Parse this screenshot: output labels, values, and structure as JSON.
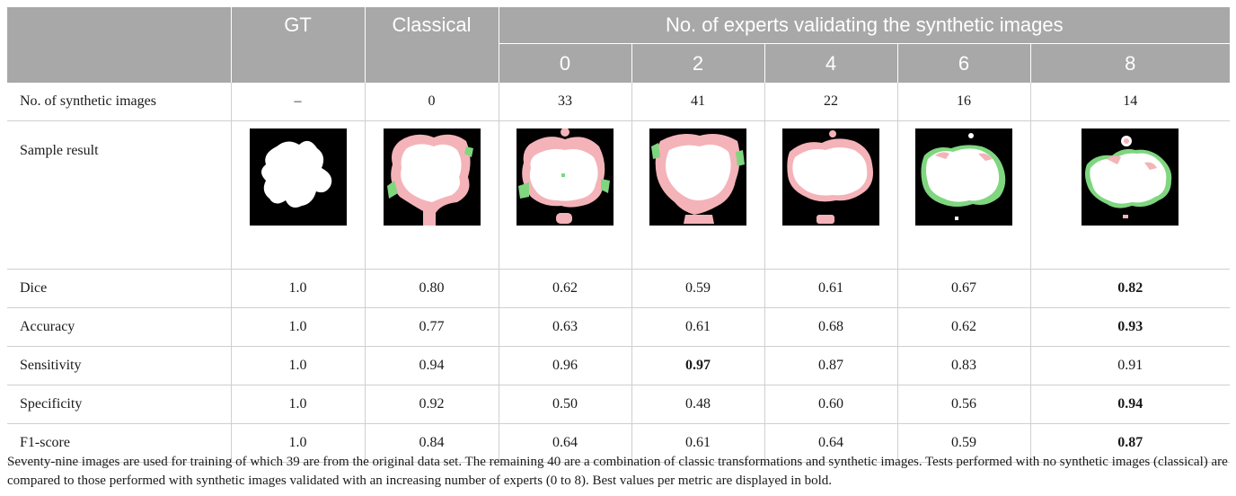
{
  "header": {
    "gt": "GT",
    "classical": "Classical",
    "experts_group": "No. of experts validating the synthetic images",
    "expert_counts": [
      "0",
      "2",
      "4",
      "6",
      "8"
    ]
  },
  "rows": {
    "synthetic": {
      "label": "No. of synthetic images",
      "values": [
        "–",
        "0",
        "33",
        "41",
        "22",
        "16",
        "14"
      ]
    },
    "sample": {
      "label": "Sample result"
    },
    "dice": {
      "label": "Dice",
      "values": [
        "1.0",
        "0.80",
        "0.62",
        "0.59",
        "0.61",
        "0.67",
        "0.82"
      ]
    },
    "accuracy": {
      "label": "Accuracy",
      "values": [
        "1.0",
        "0.77",
        "0.63",
        "0.61",
        "0.68",
        "0.62",
        "0.93"
      ]
    },
    "sensitivity": {
      "label": "Sensitivity",
      "values": [
        "1.0",
        "0.94",
        "0.96",
        "0.97",
        "0.87",
        "0.83",
        "0.91"
      ]
    },
    "specificity": {
      "label": "Specificity",
      "values": [
        "1.0",
        "0.92",
        "0.50",
        "0.48",
        "0.60",
        "0.56",
        "0.94"
      ]
    },
    "f1": {
      "label": "F1-score",
      "values": [
        "1.0",
        "0.84",
        "0.64",
        "0.61",
        "0.64",
        "0.59",
        "0.87"
      ]
    }
  },
  "bold_cells": {
    "dice": [
      6
    ],
    "accuracy": [
      6
    ],
    "sensitivity": [
      3
    ],
    "specificity": [
      6
    ],
    "f1": [
      6
    ]
  },
  "colors": {
    "header_bg": "#a8a8a8",
    "mask_bg": "#000000",
    "mask_fg": "#ffffff",
    "false_positive": "#f4b3b8",
    "false_negative": "#7fd67f"
  },
  "caption": "Seventy-nine images are used for training of which 39 are from the original data set. The remaining 40 are a combination of classic transformations and synthetic images. Tests performed with no synthetic images (classical) are compared to those performed with synthetic images validated with an increasing number of experts (0 to 8). Best values per metric are displayed in bold."
}
